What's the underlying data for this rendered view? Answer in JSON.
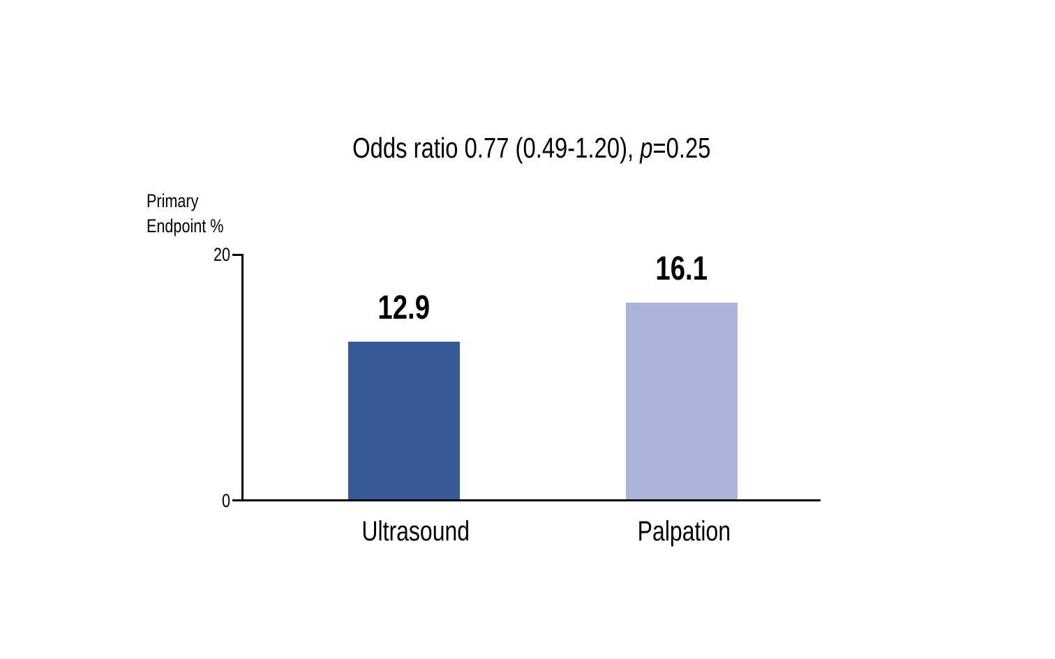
{
  "chart_data": {
    "type": "bar",
    "title": "Odds ratio 0.77 (0.49-1.20), p=0.25",
    "title_parts": {
      "prefix": "Odds ratio 0.77 (0.49-1.20), ",
      "italic": "p",
      "suffix": "=0.25"
    },
    "ylabel_lines": [
      "Primary",
      "Endpoint %"
    ],
    "xlabel": "",
    "categories": [
      "Ultrasound",
      "Palpation"
    ],
    "values": [
      12.9,
      16.1
    ],
    "value_labels": [
      "12.9",
      "16.1"
    ],
    "bar_colors": [
      "#365a96",
      "#aab3d8"
    ],
    "ylim": [
      0,
      20
    ],
    "yticks": [
      0,
      20
    ],
    "ytick_labels": [
      "0",
      "20"
    ],
    "grid": false,
    "legend": "none",
    "axis_color": "#000000",
    "text_color": "#000000",
    "background_color": "#ffffff"
  }
}
